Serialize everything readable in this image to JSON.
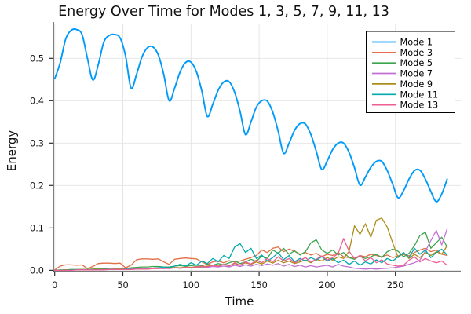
{
  "chart_data": {
    "type": "line",
    "title": "Energy Over Time for Modes 1, 3, 5, 7, 9, 11, 13",
    "xlabel": "Time",
    "ylabel": "Energy",
    "xlim": [
      -1,
      298
    ],
    "ylim": [
      -0.003,
      0.582
    ],
    "xticks": [
      0,
      50,
      100,
      150,
      200,
      250
    ],
    "yticks": [
      0.0,
      0.1,
      0.2,
      0.3,
      0.4,
      0.5
    ],
    "ytick_labels": [
      "0.0",
      "0.1",
      "0.2",
      "0.3",
      "0.4",
      "0.5"
    ],
    "grid": true,
    "legend_position": "top-right",
    "background_color": "#FFFFFF",
    "grid_color": "#E3E3E3",
    "axis_color": "#2B2B2B",
    "x": [
      0,
      4,
      8,
      12,
      16,
      20,
      24,
      28,
      32,
      36,
      40,
      44,
      48,
      52,
      56,
      60,
      64,
      68,
      72,
      76,
      80,
      84,
      88,
      92,
      96,
      100,
      104,
      108,
      112,
      116,
      120,
      124,
      128,
      132,
      136,
      140,
      144,
      148,
      152,
      156,
      160,
      164,
      168,
      172,
      176,
      180,
      184,
      188,
      192,
      196,
      200,
      204,
      208,
      212,
      216,
      220,
      224,
      228,
      232,
      236,
      240,
      244,
      248,
      252,
      256,
      260,
      264,
      268,
      272,
      276,
      280,
      284,
      288
    ],
    "series": [
      {
        "name": "Mode 1",
        "color": "#009AFA",
        "smooth": true,
        "width": 1.9,
        "values": [
          0.452,
          0.49,
          0.545,
          0.566,
          0.568,
          0.556,
          0.5,
          0.449,
          0.486,
          0.538,
          0.554,
          0.556,
          0.548,
          0.505,
          0.43,
          0.462,
          0.503,
          0.525,
          0.527,
          0.508,
          0.462,
          0.4,
          0.43,
          0.468,
          0.49,
          0.491,
          0.468,
          0.422,
          0.363,
          0.392,
          0.425,
          0.444,
          0.445,
          0.42,
          0.375,
          0.32,
          0.35,
          0.385,
          0.4,
          0.399,
          0.373,
          0.328,
          0.276,
          0.3,
          0.33,
          0.346,
          0.345,
          0.32,
          0.28,
          0.238,
          0.258,
          0.285,
          0.3,
          0.3,
          0.278,
          0.242,
          0.201,
          0.22,
          0.243,
          0.257,
          0.257,
          0.235,
          0.203,
          0.171,
          0.188,
          0.215,
          0.235,
          0.236,
          0.215,
          0.186,
          0.162,
          0.18,
          0.215
        ]
      },
      {
        "name": "Mode 3",
        "color": "#E26F46",
        "smooth": false,
        "width": 1.3,
        "values": [
          0.001,
          0.01,
          0.013,
          0.013,
          0.012,
          0.013,
          0.004,
          0.009,
          0.016,
          0.017,
          0.017,
          0.016,
          0.017,
          0.006,
          0.012,
          0.025,
          0.027,
          0.027,
          0.026,
          0.027,
          0.02,
          0.014,
          0.026,
          0.028,
          0.029,
          0.028,
          0.027,
          0.02,
          0.014,
          0.02,
          0.022,
          0.018,
          0.023,
          0.02,
          0.022,
          0.026,
          0.03,
          0.035,
          0.048,
          0.042,
          0.052,
          0.055,
          0.044,
          0.05,
          0.045,
          0.038,
          0.042,
          0.036,
          0.04,
          0.032,
          0.038,
          0.035,
          0.042,
          0.032,
          0.03,
          0.028,
          0.035,
          0.032,
          0.038,
          0.035,
          0.032,
          0.036,
          0.03,
          0.034,
          0.038,
          0.034,
          0.042,
          0.048,
          0.052,
          0.044,
          0.048,
          0.038,
          0.035
        ]
      },
      {
        "name": "Mode 5",
        "color": "#3DA44E",
        "smooth": false,
        "width": 1.3,
        "values": [
          0.0,
          0.001,
          0.001,
          0.002,
          0.002,
          0.002,
          0.002,
          0.003,
          0.004,
          0.004,
          0.005,
          0.005,
          0.005,
          0.004,
          0.006,
          0.007,
          0.008,
          0.008,
          0.009,
          0.009,
          0.008,
          0.008,
          0.01,
          0.011,
          0.01,
          0.011,
          0.012,
          0.011,
          0.014,
          0.012,
          0.016,
          0.013,
          0.018,
          0.022,
          0.016,
          0.02,
          0.026,
          0.021,
          0.034,
          0.028,
          0.048,
          0.04,
          0.052,
          0.038,
          0.046,
          0.036,
          0.044,
          0.065,
          0.072,
          0.048,
          0.04,
          0.048,
          0.036,
          0.042,
          0.03,
          0.026,
          0.034,
          0.028,
          0.032,
          0.038,
          0.03,
          0.044,
          0.05,
          0.045,
          0.032,
          0.04,
          0.058,
          0.082,
          0.09,
          0.052,
          0.065,
          0.078,
          0.055
        ]
      },
      {
        "name": "Mode 7",
        "color": "#C271D2",
        "smooth": false,
        "width": 1.3,
        "values": [
          0.0,
          0.0,
          0.001,
          0.001,
          0.001,
          0.001,
          0.001,
          0.001,
          0.002,
          0.002,
          0.002,
          0.002,
          0.003,
          0.002,
          0.003,
          0.003,
          0.004,
          0.004,
          0.004,
          0.005,
          0.004,
          0.005,
          0.006,
          0.005,
          0.006,
          0.007,
          0.006,
          0.008,
          0.007,
          0.009,
          0.008,
          0.01,
          0.008,
          0.012,
          0.009,
          0.013,
          0.01,
          0.014,
          0.011,
          0.015,
          0.012,
          0.016,
          0.01,
          0.014,
          0.009,
          0.012,
          0.008,
          0.011,
          0.008,
          0.01,
          0.012,
          0.008,
          0.014,
          0.01,
          0.008,
          0.005,
          0.004,
          0.003,
          0.004,
          0.003,
          0.004,
          0.005,
          0.006,
          0.008,
          0.01,
          0.014,
          0.018,
          0.024,
          0.045,
          0.07,
          0.094,
          0.06,
          0.098
        ]
      },
      {
        "name": "Mode 9",
        "color": "#AC8D18",
        "smooth": false,
        "width": 1.3,
        "values": [
          0.0,
          0.0,
          0.001,
          0.001,
          0.001,
          0.002,
          0.001,
          0.002,
          0.002,
          0.003,
          0.002,
          0.003,
          0.003,
          0.004,
          0.003,
          0.004,
          0.005,
          0.004,
          0.005,
          0.006,
          0.005,
          0.006,
          0.007,
          0.006,
          0.008,
          0.007,
          0.009,
          0.008,
          0.01,
          0.012,
          0.01,
          0.014,
          0.011,
          0.016,
          0.012,
          0.018,
          0.014,
          0.02,
          0.015,
          0.022,
          0.017,
          0.024,
          0.018,
          0.022,
          0.016,
          0.02,
          0.024,
          0.018,
          0.026,
          0.022,
          0.03,
          0.024,
          0.032,
          0.028,
          0.045,
          0.105,
          0.085,
          0.11,
          0.078,
          0.118,
          0.123,
          0.102,
          0.065,
          0.03,
          0.042,
          0.028,
          0.038,
          0.03,
          0.042,
          0.035,
          0.044,
          0.038,
          0.058
        ]
      },
      {
        "name": "Mode 11",
        "color": "#00A9AD",
        "smooth": false,
        "width": 1.3,
        "values": [
          0.0,
          0.0,
          0.0,
          0.001,
          0.001,
          0.001,
          0.001,
          0.001,
          0.001,
          0.002,
          0.002,
          0.002,
          0.002,
          0.003,
          0.003,
          0.003,
          0.004,
          0.004,
          0.005,
          0.006,
          0.008,
          0.006,
          0.01,
          0.014,
          0.01,
          0.018,
          0.012,
          0.022,
          0.016,
          0.028,
          0.02,
          0.035,
          0.028,
          0.055,
          0.063,
          0.042,
          0.052,
          0.028,
          0.036,
          0.022,
          0.03,
          0.042,
          0.025,
          0.035,
          0.02,
          0.028,
          0.022,
          0.03,
          0.024,
          0.032,
          0.022,
          0.028,
          0.018,
          0.024,
          0.014,
          0.022,
          0.012,
          0.02,
          0.015,
          0.025,
          0.018,
          0.028,
          0.022,
          0.032,
          0.042,
          0.03,
          0.052,
          0.038,
          0.048,
          0.03,
          0.042,
          0.05,
          0.036
        ]
      },
      {
        "name": "Mode 13",
        "color": "#ED5E93",
        "smooth": false,
        "width": 1.3,
        "values": [
          0.0,
          0.0,
          0.0,
          0.0,
          0.001,
          0.001,
          0.001,
          0.001,
          0.001,
          0.001,
          0.002,
          0.002,
          0.002,
          0.002,
          0.002,
          0.003,
          0.003,
          0.003,
          0.004,
          0.004,
          0.005,
          0.004,
          0.006,
          0.005,
          0.007,
          0.006,
          0.008,
          0.01,
          0.008,
          0.012,
          0.009,
          0.014,
          0.01,
          0.018,
          0.012,
          0.02,
          0.015,
          0.024,
          0.018,
          0.028,
          0.02,
          0.032,
          0.022,
          0.028,
          0.018,
          0.024,
          0.03,
          0.02,
          0.026,
          0.034,
          0.024,
          0.03,
          0.04,
          0.075,
          0.045,
          0.028,
          0.035,
          0.022,
          0.03,
          0.018,
          0.025,
          0.015,
          0.012,
          0.01,
          0.012,
          0.024,
          0.032,
          0.02,
          0.028,
          0.022,
          0.018,
          0.022,
          0.012
        ]
      }
    ]
  }
}
